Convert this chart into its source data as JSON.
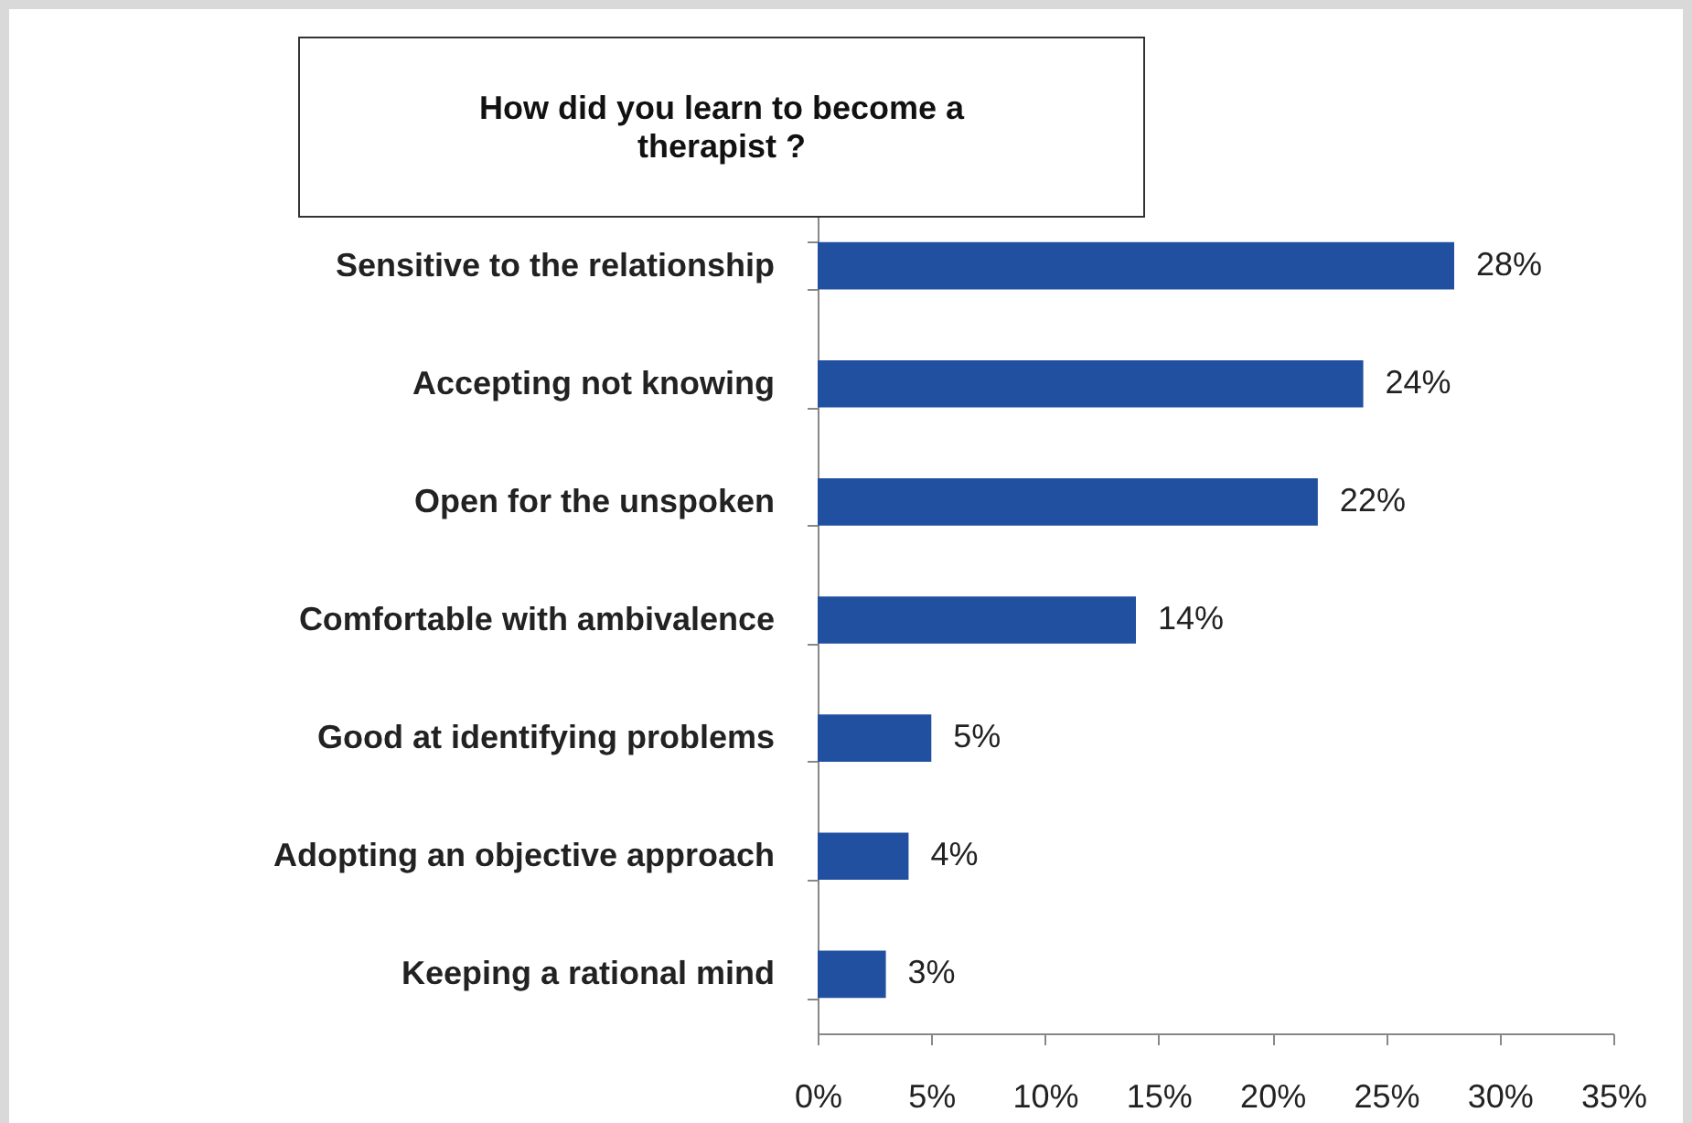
{
  "chart_data": {
    "type": "bar",
    "orientation": "horizontal",
    "title": "How did you learn to become a therapist ?",
    "categories": [
      "Sensitive to the relationship",
      "Accepting not knowing",
      "Open for the unspoken",
      "Comfortable with ambivalence",
      "Good at identifying problems",
      "Adopting an objective approach",
      "Keeping a rational mind"
    ],
    "values": [
      28,
      24,
      22,
      14,
      5,
      4,
      3
    ],
    "value_labels": [
      "28%",
      "24%",
      "22%",
      "14%",
      "5%",
      "4%",
      "3%"
    ],
    "color": "#2150a0",
    "xlim": [
      0,
      35
    ],
    "xticks": [
      {
        "value": 0,
        "label": "0%"
      },
      {
        "value": 5,
        "label": "5%"
      },
      {
        "value": 10,
        "label": "10%"
      },
      {
        "value": 15,
        "label": "15%"
      },
      {
        "value": 20,
        "label": "20%"
      },
      {
        "value": 25,
        "label": "25%"
      },
      {
        "value": 30,
        "label": "30%"
      },
      {
        "value": 35,
        "label": "35%"
      }
    ],
    "grid": false
  }
}
